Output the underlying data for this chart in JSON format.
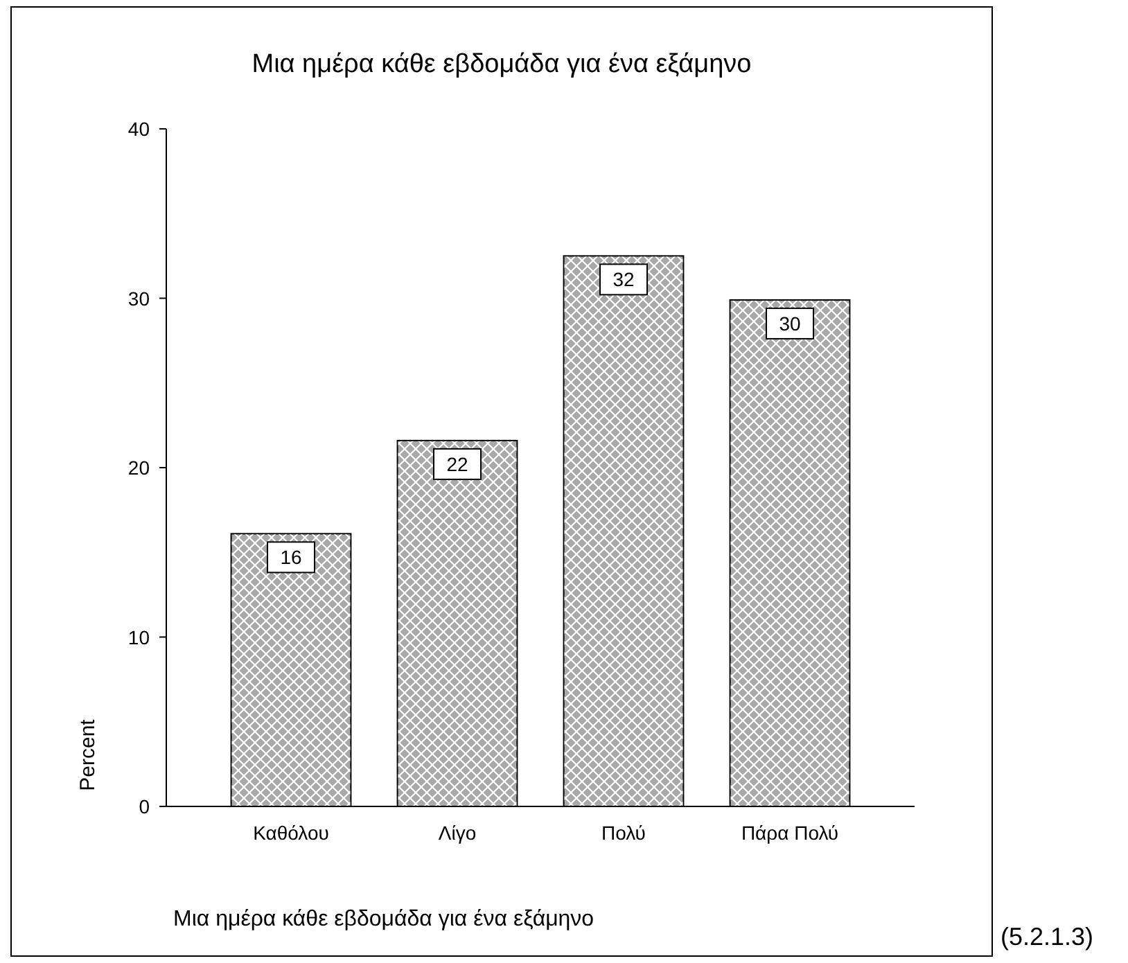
{
  "chart_data": {
    "type": "bar",
    "title": "Μια ημέρα κάθε εβδομάδα για ένα εξάμηνο",
    "xlabel": "Μια ημέρα κάθε εβδομάδα για ένα εξάμηνο",
    "ylabel": "Percent",
    "categories": [
      "Καθόλου",
      "Λίγο",
      "Πολύ",
      "Πάρα Πολύ"
    ],
    "values": [
      16.1,
      21.6,
      32.5,
      29.9
    ],
    "value_labels": [
      "16",
      "22",
      "32",
      "30"
    ],
    "color": "#a8a8a8",
    "ylim": [
      0,
      40
    ],
    "yticks": [
      0,
      10,
      20,
      30,
      40
    ],
    "grid": false,
    "annotations": [
      "(5.2.1.3)"
    ]
  }
}
